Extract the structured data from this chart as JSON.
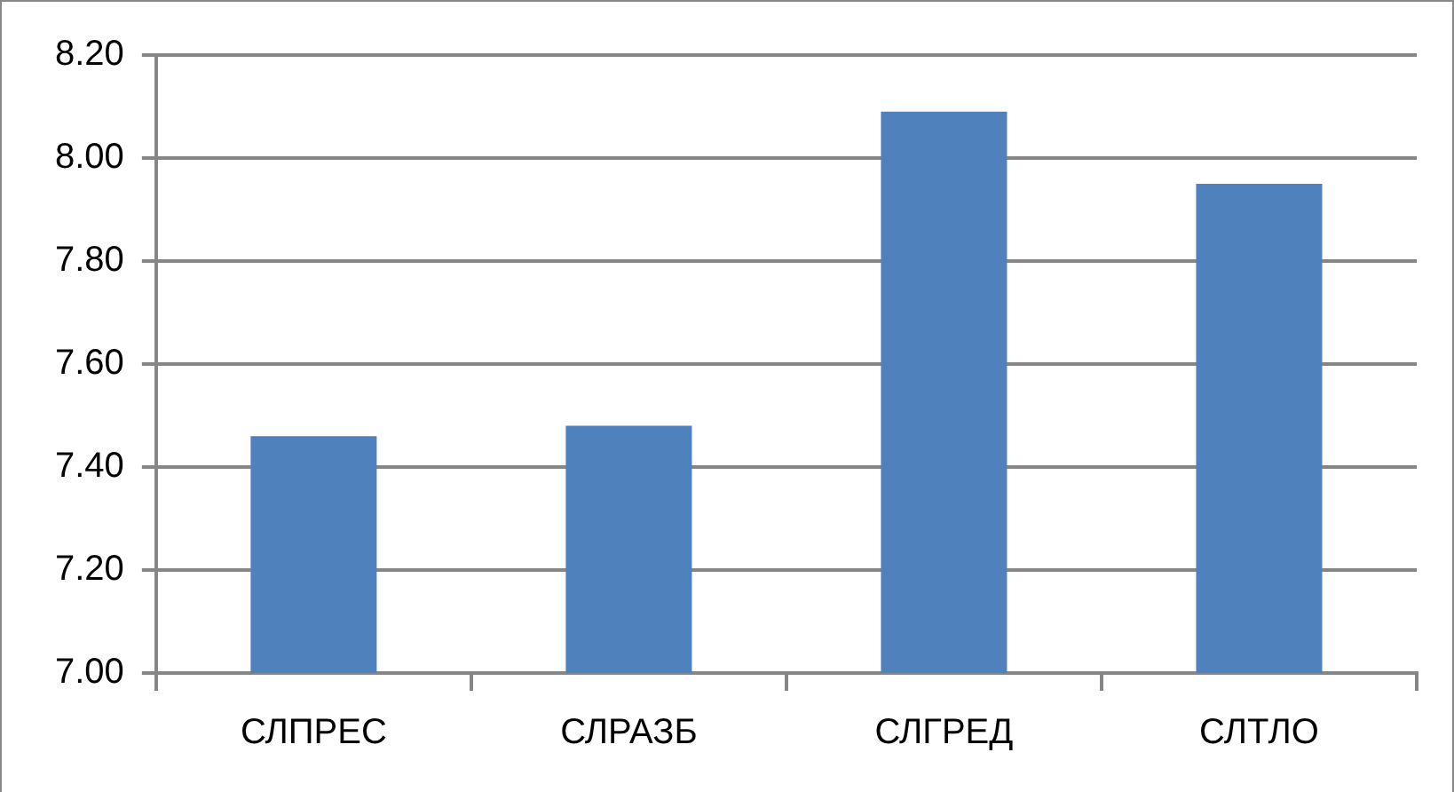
{
  "chart_data": {
    "type": "bar",
    "categories": [
      "СЛПРЕС",
      "СЛРАЗБ",
      "СЛГРЕД",
      "СЛТЛО"
    ],
    "values": [
      7.46,
      7.48,
      8.09,
      7.95
    ],
    "color": "#4f81bd",
    "ylim": [
      7.0,
      8.2
    ],
    "yticks": [
      {
        "value": 7.0,
        "label": "7.00"
      },
      {
        "value": 7.2,
        "label": "7.20"
      },
      {
        "value": 7.4,
        "label": "7.40"
      },
      {
        "value": 7.6,
        "label": "7.60"
      },
      {
        "value": 7.8,
        "label": "7.80"
      },
      {
        "value": 8.0,
        "label": "8.00"
      },
      {
        "value": 8.2,
        "label": "8.20"
      }
    ],
    "grid": "y",
    "legend": false
  }
}
